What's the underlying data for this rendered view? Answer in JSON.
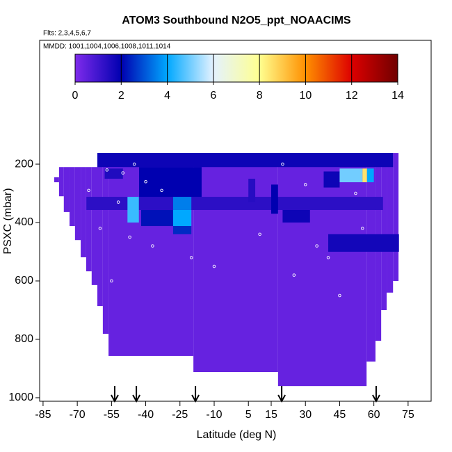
{
  "chart_data": {
    "type": "curtain",
    "title": "ATOM3 Southbound N2O5_ppt_NOAACIMS",
    "subtitle": "Flts: 2,3,4,5,6,7",
    "annotation": "MMDD: 1001,1004,1006,1008,1011,1014",
    "x_label": "Latitude (deg N)",
    "y_label": "PSXC (mbar)",
    "xlim": [
      -86.5,
      85.1
    ],
    "ylim": [
      1012,
      -224
    ],
    "xticks": [
      -85,
      -70,
      -55,
      -40,
      -25,
      -10,
      5,
      15,
      30,
      45,
      60,
      75
    ],
    "yticks": [
      200,
      400,
      600,
      800,
      1000
    ],
    "clim": [
      0,
      14
    ],
    "colorbar_ticks": [
      0,
      2,
      4,
      6,
      8,
      10,
      12,
      14
    ],
    "colormap": {
      "stops": [
        0,
        2,
        4,
        6,
        8,
        10,
        12,
        14
      ],
      "colors": [
        "#7f2bec",
        "#0000b0",
        "#00a8ff",
        "#e4f2ff",
        "#ffff90",
        "#ff9000",
        "#dd0000",
        "#700000"
      ]
    },
    "cells": [
      {
        "lat": [
          -80.1,
          -78.0
        ],
        "p": [
          245,
          262
        ],
        "value": 0.4
      },
      {
        "lat": [
          -78.0,
          -75.9
        ],
        "p": [
          210,
          310
        ],
        "value": 0.4
      },
      {
        "lat": [
          -75.9,
          -73.4
        ],
        "p": [
          210,
          364
        ],
        "value": 0.4
      },
      {
        "lat": [
          -73.4,
          -71.0
        ],
        "p": [
          210,
          412
        ],
        "value": 0.4
      },
      {
        "lat": [
          -71.0,
          -68.5
        ],
        "p": [
          210,
          460
        ],
        "value": 0.4
      },
      {
        "lat": [
          -68.5,
          -66.1
        ],
        "p": [
          210,
          519
        ],
        "value": 0.4
      },
      {
        "lat": [
          -66.1,
          -63.7
        ],
        "p": [
          210,
          567
        ],
        "value": 0.4
      },
      {
        "lat": [
          -63.7,
          -61.2
        ],
        "p": [
          210,
          614
        ],
        "value": 0.4
      },
      {
        "lat": [
          -61.2,
          -58.8
        ],
        "p": [
          162,
          686
        ],
        "value": 0.4
      },
      {
        "lat": [
          -58.8,
          -56.3
        ],
        "p": [
          162,
          781
        ],
        "value": 0.4
      },
      {
        "lat": [
          -56.3,
          -19.1
        ],
        "p": [
          162,
          857
        ],
        "value": 0.4
      },
      {
        "lat": [
          -19.1,
          18.0
        ],
        "p": [
          162,
          912
        ],
        "value": 0.4
      },
      {
        "lat": [
          18.0,
          56.8
        ],
        "p": [
          162,
          960
        ],
        "value": 0.4
      },
      {
        "lat": [
          56.8,
          60.7
        ],
        "p": [
          162,
          876
        ],
        "value": 0.4
      },
      {
        "lat": [
          60.7,
          63.2
        ],
        "p": [
          162,
          805
        ],
        "value": 0.4
      },
      {
        "lat": [
          63.2,
          65.6
        ],
        "p": [
          162,
          700
        ],
        "value": 0.4
      },
      {
        "lat": [
          65.6,
          68.4
        ],
        "p": [
          162,
          640
        ],
        "value": 0.4
      },
      {
        "lat": [
          68.4,
          70.8
        ],
        "p": [
          162,
          600
        ],
        "value": 0.4
      },
      {
        "lat": [
          -61.2,
          68.4
        ],
        "p": [
          162,
          210
        ],
        "value": 1.8
      },
      {
        "lat": [
          -58,
          -50
        ],
        "p": [
          215,
          250
        ],
        "value": 1.5
      },
      {
        "lat": [
          -42.9,
          -15.5
        ],
        "p": [
          210,
          315
        ],
        "value": 2.0
      },
      {
        "lat": [
          38,
          45
        ],
        "p": [
          225,
          280
        ],
        "value": 1.8
      },
      {
        "lat": [
          45,
          55
        ],
        "p": [
          215,
          262
        ],
        "value": 5.0
      },
      {
        "lat": [
          55,
          57
        ],
        "p": [
          215,
          262
        ],
        "value": 8.5
      },
      {
        "lat": [
          57,
          60
        ],
        "p": [
          215,
          262
        ],
        "value": 4.0
      },
      {
        "lat": [
          -66,
          64
        ],
        "p": [
          312,
          357
        ],
        "value": 1.3
      },
      {
        "lat": [
          5,
          8
        ],
        "p": [
          250,
          330
        ],
        "value": 1.4
      },
      {
        "lat": [
          15,
          18
        ],
        "p": [
          270,
          370
        ],
        "value": 2.0
      },
      {
        "lat": [
          -48,
          -43
        ],
        "p": [
          312,
          400
        ],
        "value": 4.5
      },
      {
        "lat": [
          -42,
          -28
        ],
        "p": [
          357,
          412
        ],
        "value": 2.2
      },
      {
        "lat": [
          -28,
          -20
        ],
        "p": [
          312,
          357
        ],
        "value": 3.5
      },
      {
        "lat": [
          -28,
          -20
        ],
        "p": [
          357,
          412
        ],
        "value": 4.0
      },
      {
        "lat": [
          -28,
          -20
        ],
        "p": [
          412,
          440
        ],
        "value": 2.5
      },
      {
        "lat": [
          20,
          32
        ],
        "p": [
          357,
          400
        ],
        "value": 1.8
      },
      {
        "lat": [
          40,
          71
        ],
        "p": [
          440,
          500
        ],
        "value": 1.7
      }
    ],
    "points": {
      "lat": [
        -57,
        -50,
        -45,
        -40,
        -33,
        -52,
        -60,
        -47,
        -37,
        -55,
        -20,
        -10,
        10,
        20,
        25,
        35,
        45,
        52,
        30,
        -65,
        40,
        55
      ],
      "p": [
        220,
        230,
        200,
        260,
        290,
        330,
        420,
        450,
        480,
        600,
        520,
        550,
        440,
        200,
        580,
        480,
        650,
        300,
        270,
        290,
        520,
        420
      ]
    },
    "flight_markers_lat": [
      -53.6,
      -44.1,
      -18.2,
      19.6,
      61.0
    ]
  }
}
